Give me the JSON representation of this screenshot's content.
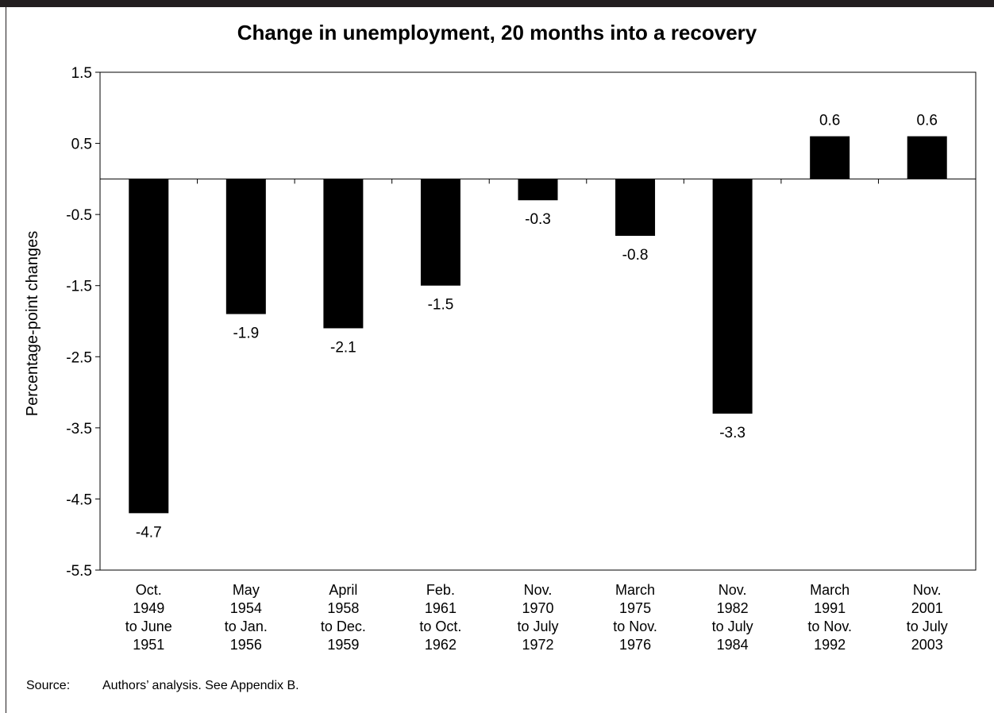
{
  "chart_data": {
    "type": "bar",
    "title": "Change in unemployment, 20 months into a recovery",
    "xlabel": "",
    "ylabel": "Percentage-point changes",
    "ylim": [
      -5.5,
      1.5
    ],
    "yticks": [
      1.5,
      0.5,
      -0.5,
      -1.5,
      -2.5,
      -3.5,
      -4.5,
      -5.5
    ],
    "ytick_labels": [
      "1.5",
      "0.5",
      "-0.5",
      "-1.5",
      "-2.5",
      "-3.5",
      "-4.5",
      "-5.5"
    ],
    "categories": [
      [
        "Oct.",
        "1949",
        "to June",
        "1951"
      ],
      [
        "May",
        "1954",
        "to Jan.",
        "1956"
      ],
      [
        "April",
        "1958",
        "to Dec.",
        "1959"
      ],
      [
        "Feb.",
        "1961",
        "to Oct.",
        "1962"
      ],
      [
        "Nov.",
        "1970",
        "to July",
        "1972"
      ],
      [
        "March",
        "1975",
        "to Nov.",
        "1976"
      ],
      [
        "Nov.",
        "1982",
        "to July",
        "1984"
      ],
      [
        "March",
        "1991",
        "to Nov.",
        "1992"
      ],
      [
        "Nov.",
        "2001",
        "to July",
        "2003"
      ]
    ],
    "values": [
      -4.7,
      -1.9,
      -2.1,
      -1.5,
      -0.3,
      -0.8,
      -3.3,
      0.6,
      0.6
    ],
    "value_labels": [
      "-4.7",
      "-1.9",
      "-2.1",
      "-1.5",
      "-0.3",
      "-0.8",
      "-3.3",
      "0.6",
      "0.6"
    ],
    "bar_color": "#000000",
    "grid": false,
    "legend": "none"
  },
  "source": {
    "label": "Source:",
    "text": "Authors’ analysis. See Appendix B."
  }
}
